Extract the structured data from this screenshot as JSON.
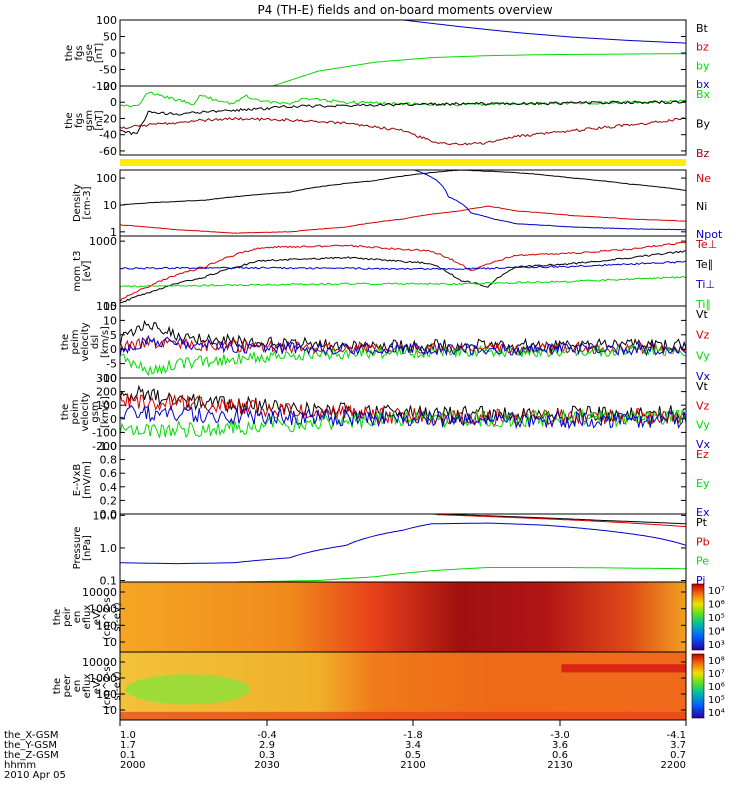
{
  "title": "P4 (TH-E) fields and on-board moments overview",
  "colors": {
    "black": "#000000",
    "red": "#d40000",
    "darkred": "#990000",
    "green": "#00dd00",
    "blue": "#0000cc",
    "yellow": "#ffee00"
  },
  "chart_data": {
    "type": "line",
    "x_axis": {
      "rows": [
        {
          "label": "the_X-GSM",
          "values": [
            "1.0",
            "-0.4",
            "-1.8",
            "-3.0",
            "-4.1"
          ]
        },
        {
          "label": "the_Y-GSM",
          "values": [
            "1.7",
            "2.9",
            "3.4",
            "3.6",
            "3.7"
          ]
        },
        {
          "label": "the_Z-GSM",
          "values": [
            "0.1",
            "0.3",
            "0.5",
            "0.6",
            "0.7"
          ]
        },
        {
          "label": "hhmm",
          "values": [
            "2000",
            "2030",
            "2100",
            "2130",
            "2200"
          ]
        }
      ],
      "date": "2010 Apr 05",
      "range_hhmm": [
        "2000",
        "2200"
      ]
    },
    "panels": [
      {
        "id": "fgs-gse",
        "ylabel": [
          "the",
          "fgs",
          "gse",
          "[nT]"
        ],
        "ylim": [
          -100,
          100
        ],
        "yticks": [
          "100",
          "50",
          "0",
          "-50",
          "-100"
        ],
        "legend": [
          {
            "label": "Bt",
            "color": "#000000"
          },
          {
            "label": "bz",
            "color": "#d40000"
          },
          {
            "label": "by",
            "color": "#00dd00"
          },
          {
            "label": "bx",
            "color": "#0000cc"
          }
        ],
        "series": [
          {
            "name": "by",
            "color": "#00dd00",
            "x": [
              0.27,
              0.35,
              0.45,
              0.55,
              0.65,
              0.75,
              0.9,
              1.0
            ],
            "y": [
              -100,
              -55,
              -28,
              -14,
              -8,
              -5,
              -3,
              -2
            ]
          },
          {
            "name": "bx",
            "color": "#0000cc",
            "x": [
              0.5,
              0.6,
              0.7,
              0.8,
              0.9,
              1.0
            ],
            "y": [
              100,
              80,
              62,
              48,
              38,
              30
            ]
          }
        ]
      },
      {
        "id": "fgs-gsm",
        "ylabel": [
          "the",
          "fgs",
          "gsm",
          "[nT]"
        ],
        "ylim": [
          -65,
          20
        ],
        "yticks": [
          "20",
          "0",
          "-20",
          "-40",
          "-60"
        ],
        "legend": [
          {
            "label": "Bx",
            "color": "#00dd00"
          },
          {
            "label": "By",
            "color": "#000000"
          },
          {
            "label": "Bz",
            "color": "#990000"
          }
        ],
        "series": [
          {
            "name": "Bx",
            "color": "#00dd00",
            "x": [
              0.0,
              0.03,
              0.05,
              0.1,
              0.13,
              0.14,
              0.2,
              0.22,
              0.25,
              0.3,
              0.32,
              0.4,
              0.5,
              0.6,
              0.7,
              0.8,
              0.9,
              1.0
            ],
            "y": [
              -3,
              -5,
              12,
              3,
              -2,
              8,
              -2,
              8,
              2,
              -3,
              5,
              0,
              -2,
              -3,
              -2,
              -1,
              0,
              2
            ]
          },
          {
            "name": "By",
            "color": "#000000",
            "x": [
              0.0,
              0.03,
              0.05,
              0.1,
              0.15,
              0.25,
              0.3,
              0.4,
              0.5,
              0.6,
              0.7,
              0.8,
              0.9,
              1.0
            ],
            "y": [
              -35,
              -40,
              -12,
              -15,
              -12,
              -8,
              -5,
              -4,
              -3,
              -2,
              -2,
              -1,
              0,
              0
            ]
          },
          {
            "name": "Bz",
            "color": "#990000",
            "x": [
              0.0,
              0.05,
              0.1,
              0.15,
              0.2,
              0.3,
              0.4,
              0.5,
              0.55,
              0.6,
              0.65,
              0.7,
              0.8,
              0.9,
              1.0
            ],
            "y": [
              -32,
              -28,
              -25,
              -22,
              -20,
              -22,
              -26,
              -35,
              -48,
              -52,
              -50,
              -42,
              -35,
              -28,
              -20
            ]
          }
        ]
      },
      {
        "id": "density",
        "ylabel": [
          "Density",
          "[cm-3]"
        ],
        "log": true,
        "ylim": [
          0.7,
          200
        ],
        "yticks": [
          "100",
          "10",
          "1"
        ],
        "legend": [
          {
            "label": "Ne",
            "color": "#d40000"
          },
          {
            "label": "Ni",
            "color": "#000000"
          },
          {
            "label": "Npot",
            "color": "#0000cc"
          }
        ],
        "series": [
          {
            "name": "Ni",
            "color": "#000000",
            "x": [
              0.0,
              0.05,
              0.15,
              0.3,
              0.45,
              0.55,
              0.6,
              0.7,
              0.8,
              0.9,
              1.0
            ],
            "y": [
              10,
              12,
              15,
              30,
              80,
              160,
              200,
              160,
              100,
              60,
              35
            ]
          },
          {
            "name": "Ne",
            "color": "#d40000",
            "x": [
              0.0,
              0.05,
              0.1,
              0.2,
              0.3,
              0.4,
              0.5,
              0.6,
              0.65,
              0.7,
              0.8,
              0.9,
              1.0
            ],
            "y": [
              1.8,
              1.5,
              1.2,
              0.9,
              1.0,
              1.5,
              3.0,
              6.0,
              9.0,
              6.0,
              4.0,
              3.0,
              2.5
            ]
          },
          {
            "name": "Npot",
            "color": "#0000cc",
            "x": [
              0.52,
              0.54,
              0.58,
              0.62,
              0.66,
              0.7,
              0.8,
              0.9,
              1.0
            ],
            "y": [
              200,
              140,
              20,
              5,
              3,
              2,
              1.5,
              1.3,
              1.2
            ]
          }
        ]
      },
      {
        "id": "mom-t3",
        "ylabel": [
          "mom_t3",
          "[eV]"
        ],
        "log": true,
        "ylim": [
          100,
          1200
        ],
        "yticks": [
          "1000",
          "100"
        ],
        "legend": [
          {
            "label": "Te⊥",
            "color": "#d40000"
          },
          {
            "label": "Te∥",
            "color": "#000000"
          },
          {
            "label": "Ti⊥",
            "color": "#0000cc"
          },
          {
            "label": "Ti∥",
            "color": "#00dd00"
          }
        ],
        "series": [
          {
            "name": "Te⊥",
            "color": "#d40000",
            "x": [
              0.0,
              0.05,
              0.15,
              0.25,
              0.4,
              0.55,
              0.62,
              0.7,
              0.8,
              0.9,
              1.0
            ],
            "y": [
              120,
              200,
              400,
              800,
              850,
              700,
              350,
              600,
              650,
              750,
              950
            ]
          },
          {
            "name": "Te∥",
            "color": "#000000",
            "x": [
              0.0,
              0.05,
              0.15,
              0.25,
              0.4,
              0.55,
              0.6,
              0.65,
              0.7,
              0.8,
              0.9,
              1.0
            ],
            "y": [
              110,
              160,
              280,
              500,
              560,
              450,
              250,
              200,
              400,
              450,
              550,
              700
            ]
          },
          {
            "name": "Ti⊥",
            "color": "#0000cc",
            "x": [
              0.0,
              0.2,
              0.4,
              0.6,
              0.8,
              1.0
            ],
            "y": [
              380,
              390,
              380,
              370,
              410,
              480
            ]
          },
          {
            "name": "Ti∥",
            "color": "#00dd00",
            "x": [
              0.0,
              0.2,
              0.4,
              0.6,
              0.8,
              1.0
            ],
            "y": [
              200,
              210,
              220,
              220,
              240,
              280
            ]
          }
        ]
      },
      {
        "id": "peim-velocity-dsl",
        "ylabel": [
          "the",
          "peim",
          "velocity",
          "dsl",
          "[km/s]"
        ],
        "ylim": [
          -10,
          15
        ],
        "yticks": [
          "15",
          "10",
          "5",
          "0",
          "-5",
          "-10"
        ],
        "legend": [
          {
            "label": "Vt",
            "color": "#000000"
          },
          {
            "label": "Vz",
            "color": "#d40000"
          },
          {
            "label": "Vy",
            "color": "#00dd00"
          },
          {
            "label": "Vx",
            "color": "#0000cc"
          }
        ],
        "series": [
          {
            "name": "Vt",
            "color": "#000000",
            "x": [
              0.0,
              0.05,
              0.1,
              0.2,
              0.3,
              0.5,
              0.7,
              1.0
            ],
            "y": [
              3,
              9,
              5,
              3,
              2,
              1.5,
              1.5,
              1.5
            ]
          },
          {
            "name": "Vz",
            "color": "#d40000",
            "x": [
              0.0,
              0.05,
              0.2,
              0.5,
              1.0
            ],
            "y": [
              1,
              2,
              1,
              0.5,
              0.5
            ]
          },
          {
            "name": "Vy",
            "color": "#00dd00",
            "x": [
              0.0,
              0.05,
              0.1,
              0.3,
              0.5,
              1.0
            ],
            "y": [
              -2,
              -8,
              -5,
              -2,
              -1,
              -0.5
            ]
          },
          {
            "name": "Vx",
            "color": "#0000cc",
            "x": [
              0.0,
              0.05,
              0.2,
              0.5,
              1.0
            ],
            "y": [
              -1,
              3,
              0.5,
              0,
              0
            ]
          }
        ]
      },
      {
        "id": "peim-velocity-gsm",
        "ylabel": [
          "the",
          "peim",
          "velocity",
          "gsm",
          "[km/s]"
        ],
        "ylim": [
          -200,
          300
        ],
        "yticks": [
          "300",
          "200",
          "100",
          "0",
          "-100",
          "-200"
        ],
        "legend": [
          {
            "label": "Vt",
            "color": "#000000"
          },
          {
            "label": "Vz",
            "color": "#d40000"
          },
          {
            "label": "Vy",
            "color": "#00dd00"
          },
          {
            "label": "Vx",
            "color": "#0000cc"
          }
        ],
        "series": [
          {
            "name": "Vt",
            "color": "#000000",
            "x": [
              0.0,
              0.05,
              0.15,
              0.3,
              0.5,
              0.7,
              1.0
            ],
            "y": [
              200,
              170,
              120,
              80,
              40,
              30,
              40
            ]
          },
          {
            "name": "Vz",
            "color": "#d40000",
            "x": [
              0.0,
              0.1,
              0.3,
              0.5,
              0.7,
              1.0
            ],
            "y": [
              140,
              120,
              60,
              20,
              10,
              20
            ]
          },
          {
            "name": "Vy",
            "color": "#00dd00",
            "x": [
              0.0,
              0.1,
              0.3,
              0.5,
              0.7,
              1.0
            ],
            "y": [
              -100,
              -80,
              -40,
              0,
              0,
              10
            ]
          },
          {
            "name": "Vx",
            "color": "#0000cc",
            "x": [
              0.0,
              0.1,
              0.3,
              0.5,
              0.7,
              1.0
            ],
            "y": [
              50,
              30,
              10,
              0,
              -10,
              -5
            ]
          }
        ]
      },
      {
        "id": "e-vxb",
        "ylabel": [
          "E--VxB",
          "[mV/m]"
        ],
        "ylim": [
          0,
          1
        ],
        "yticks": [
          "1.0",
          "0.8",
          "0.6",
          "0.4",
          "0.2",
          "0.0"
        ],
        "legend": [
          {
            "label": "Ez",
            "color": "#d40000"
          },
          {
            "label": "Ey",
            "color": "#00dd00"
          },
          {
            "label": "Ex",
            "color": "#0000cc"
          }
        ],
        "series": []
      },
      {
        "id": "pressure",
        "ylabel": [
          "Pressure",
          "[nPa]"
        ],
        "log": true,
        "ylim": [
          0.09,
          11
        ],
        "yticks": [
          "10.0",
          "1.0",
          "0.1"
        ],
        "legend": [
          {
            "label": "Pt",
            "color": "#000000"
          },
          {
            "label": "Pb",
            "color": "#d40000"
          },
          {
            "label": "Pe",
            "color": "#00dd00"
          },
          {
            "label": "Pi",
            "color": "#0000cc"
          }
        ],
        "series": [
          {
            "name": "Pt",
            "color": "#000000",
            "x": [
              0.55,
              0.7,
              0.85,
              1.0
            ],
            "y": [
              11,
              9,
              7,
              5.5
            ]
          },
          {
            "name": "Pb",
            "color": "#d40000",
            "x": [
              0.56,
              0.7,
              0.85,
              1.0
            ],
            "y": [
              10.5,
              8.5,
              6.5,
              4.5
            ]
          },
          {
            "name": "Pi",
            "color": "#0000cc",
            "x": [
              0.0,
              0.1,
              0.2,
              0.3,
              0.4,
              0.5,
              0.55,
              0.65,
              0.75,
              0.85,
              0.95,
              1.0
            ],
            "y": [
              0.35,
              0.33,
              0.35,
              0.5,
              1.2,
              3.5,
              5.5,
              5.8,
              5.0,
              3.5,
              2.0,
              1.2
            ]
          },
          {
            "name": "Pe",
            "color": "#00dd00",
            "x": [
              0.0,
              0.2,
              0.35,
              0.45,
              0.55,
              0.65,
              0.8,
              1.0
            ],
            "y": [
              0.09,
              0.09,
              0.1,
              0.13,
              0.2,
              0.25,
              0.25,
              0.23
            ]
          }
        ]
      },
      {
        "id": "peir-en-eflux",
        "type": "heatmap",
        "ylabel": [
          "the",
          "peir",
          "en",
          "eflux",
          "eV/",
          "(cm^2-s-",
          "sr-eV)"
        ],
        "yticks": [
          "10000",
          "1000",
          "100",
          "10"
        ],
        "colorbar_ticks": [
          "10⁷",
          "10⁶",
          "10⁵",
          "10⁴",
          "10³"
        ]
      },
      {
        "id": "peer-en-eflux",
        "type": "heatmap",
        "ylabel": [
          "the",
          "peer",
          "en",
          "eflux",
          "eV/",
          "(cm^2-s-",
          "sr-eV)"
        ],
        "yticks": [
          "10000",
          "1000",
          "100",
          "10"
        ],
        "colorbar_ticks": [
          "10⁸",
          "10⁷",
          "10⁶",
          "10⁵",
          "10⁴"
        ]
      }
    ]
  }
}
